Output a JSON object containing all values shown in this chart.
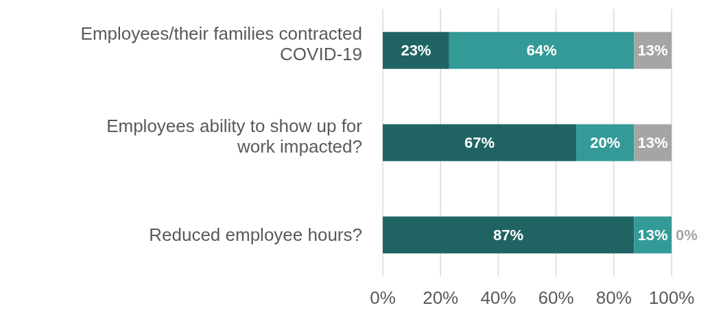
{
  "chart_data": {
    "type": "bar",
    "orientation": "horizontal",
    "stacked": true,
    "categories": [
      "Employees/their families contracted COVID-19",
      "Employees ability to show up for work impacted?",
      "Reduced employee hours?"
    ],
    "series": [
      {
        "color": "#1f6463",
        "values": [
          23,
          67,
          87
        ],
        "value_labels": [
          "23%",
          "67%",
          "87%"
        ]
      },
      {
        "color": "#339a97",
        "values": [
          64,
          20,
          13
        ],
        "value_labels": [
          "64%",
          "20%",
          "13%"
        ]
      },
      {
        "color": "#a5a5a5",
        "values": [
          13,
          13,
          0
        ],
        "value_labels": [
          "13%",
          "13%",
          "0%"
        ]
      }
    ],
    "xlim": [
      0,
      100
    ],
    "xticks": [
      {
        "value": 0,
        "label": "0%"
      },
      {
        "value": 20,
        "label": "20%"
      },
      {
        "value": 40,
        "label": "40%"
      },
      {
        "value": 60,
        "label": "60%"
      },
      {
        "value": 80,
        "label": "80%"
      },
      {
        "value": 100,
        "label": "100%"
      }
    ],
    "grid": "x"
  }
}
